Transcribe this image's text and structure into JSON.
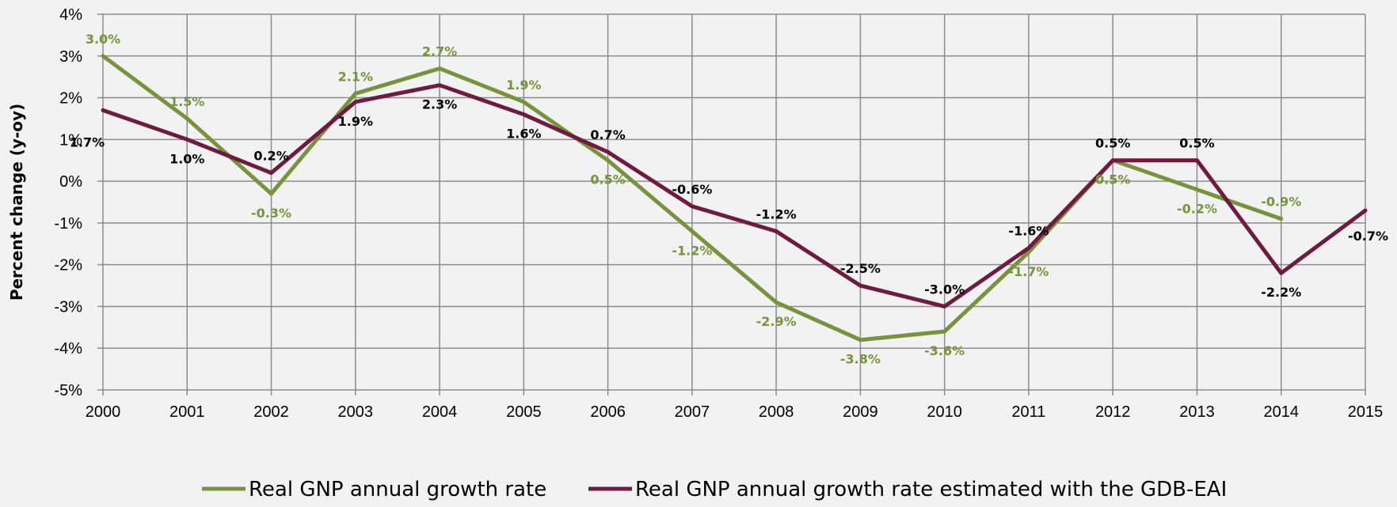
{
  "chart_data": {
    "type": "line",
    "title": "",
    "xlabel": "",
    "ylabel": "Percent change (y-oy)",
    "x": [
      "2000",
      "2001",
      "2002",
      "2003",
      "2004",
      "2005",
      "2006",
      "2007",
      "2008",
      "2009",
      "2010",
      "2011",
      "2012",
      "2013",
      "2014",
      "2015"
    ],
    "ylim": [
      -5,
      4
    ],
    "y_ticks": [
      "-5%",
      "-4%",
      "-3%",
      "-2%",
      "-1%",
      "0%",
      "1%",
      "2%",
      "3%",
      "4%"
    ],
    "y_tick_values": [
      -5,
      -4,
      -3,
      -2,
      -1,
      0,
      1,
      2,
      3,
      4
    ],
    "grid": true,
    "legend_position": "bottom",
    "series": [
      {
        "name": "Real GNP annual growth rate",
        "color": "#77933c",
        "values": [
          3.0,
          1.5,
          -0.3,
          2.1,
          2.7,
          1.9,
          0.5,
          -1.2,
          -2.9,
          -3.8,
          -3.6,
          -1.7,
          0.5,
          -0.2,
          -0.9,
          null
        ],
        "labels": [
          "3.0%",
          "1.5%",
          "-0.3%",
          "2.1%",
          "2.7%",
          "1.9%",
          "0.5%",
          "-1.2%",
          "-2.9%",
          "-3.8%",
          "-3.6%",
          "-1.7%",
          "0.5%",
          "-0.2%",
          "-0.9%",
          ""
        ]
      },
      {
        "name": "Real GNP annual growth rate estimated with the GDB-EAI",
        "color": "#6f1a3f",
        "label_color": "#000000",
        "values": [
          1.7,
          1.0,
          0.2,
          1.9,
          2.3,
          1.6,
          0.7,
          -0.6,
          -1.2,
          -2.5,
          -3.0,
          -1.6,
          0.5,
          0.5,
          -2.2,
          -0.7
        ],
        "labels": [
          "1.7%",
          "1.0%",
          "0.2%",
          "1.9%",
          "2.3%",
          "1.6%",
          "0.7%",
          "-0.6%",
          "-1.2%",
          "-2.5%",
          "-3.0%",
          "-1.6%",
          "0.5%",
          "0.5%",
          "-2.2%",
          "-0.7%"
        ]
      }
    ]
  }
}
